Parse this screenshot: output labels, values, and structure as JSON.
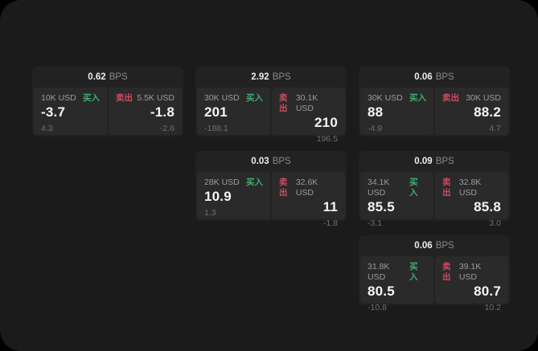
{
  "labels": {
    "bps": "BPS",
    "buy": "买入",
    "sell": "卖出"
  },
  "colors": {
    "page_outer": "#000000",
    "surface": "#1b1b1c",
    "card": "#222223",
    "panel": "#2a2a2b",
    "buy_green": "#3fae6d",
    "sell_red": "#d04a5c"
  },
  "cards": [
    {
      "bps": "0.62",
      "buy": {
        "amount": "10K USD",
        "value": "-3.7",
        "delta": "4.3"
      },
      "sell": {
        "amount": "5.5K USD",
        "value": "-1.8",
        "delta": "-2.6"
      }
    },
    {
      "bps": "2.92",
      "buy": {
        "amount": "30K USD",
        "value": "201",
        "delta": "-188.1"
      },
      "sell": {
        "amount": "30.1K USD",
        "value": "210",
        "delta": "196.5"
      }
    },
    {
      "bps": "0.06",
      "buy": {
        "amount": "30K USD",
        "value": "88",
        "delta": "-4.9"
      },
      "sell": {
        "amount": "30K USD",
        "value": "88.2",
        "delta": "4.7"
      }
    },
    {
      "bps": "0.03",
      "buy": {
        "amount": "28K USD",
        "value": "10.9",
        "delta": "1.3"
      },
      "sell": {
        "amount": "32.6K USD",
        "value": "11",
        "delta": "-1.8"
      }
    },
    {
      "bps": "0.09",
      "buy": {
        "amount": "34.1K USD",
        "value": "85.5",
        "delta": "-3.1"
      },
      "sell": {
        "amount": "32.8K USD",
        "value": "85.8",
        "delta": "3.0"
      }
    },
    {
      "bps": "0.06",
      "buy": {
        "amount": "31.8K USD",
        "value": "80.5",
        "delta": "-10.8"
      },
      "sell": {
        "amount": "39.1K USD",
        "value": "80.7",
        "delta": "10.2"
      }
    }
  ]
}
